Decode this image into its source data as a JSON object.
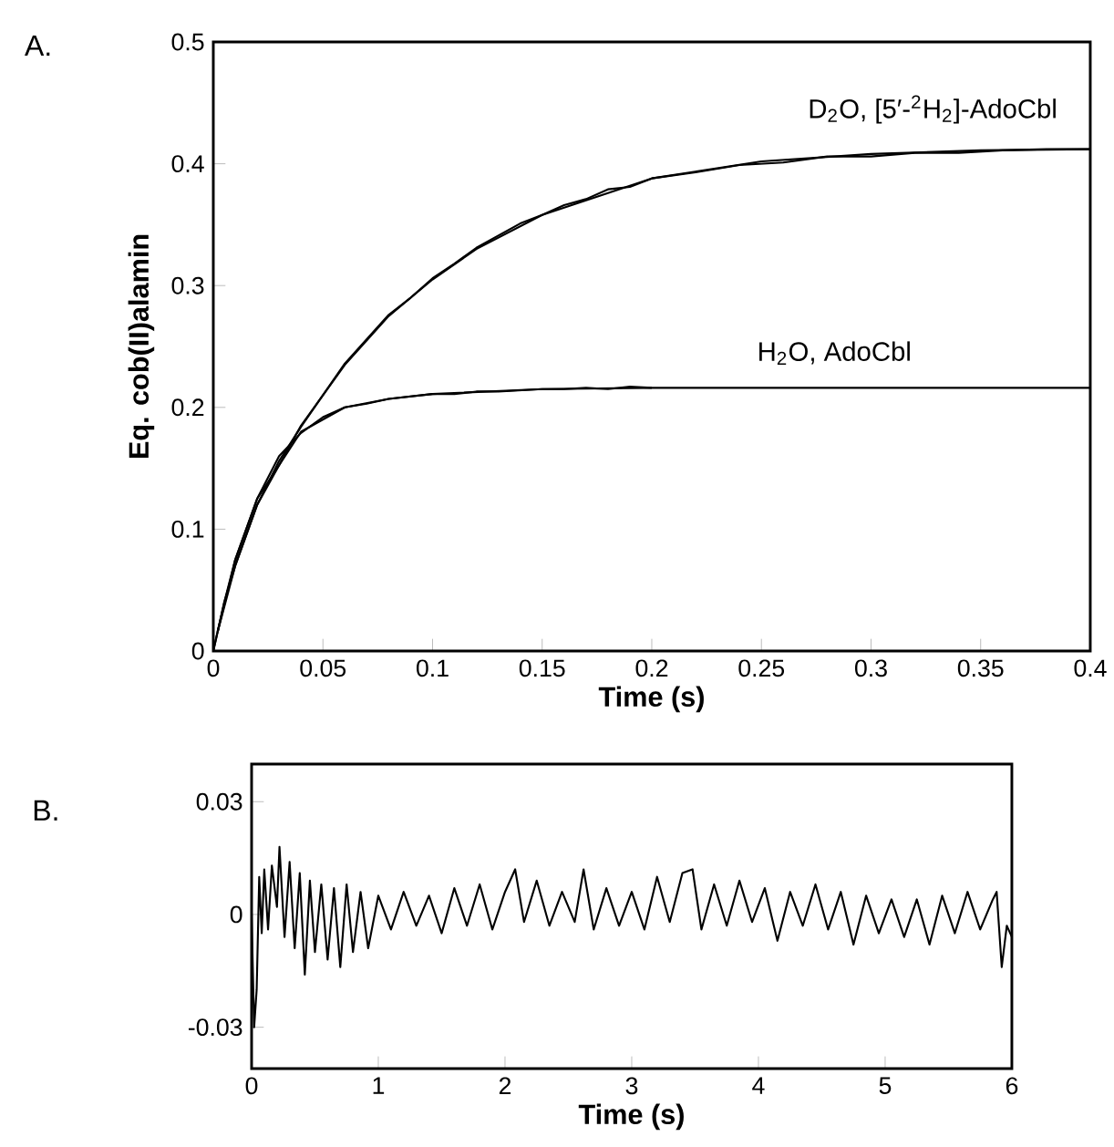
{
  "chart_data": [
    {
      "type": "line",
      "title": "A.",
      "xlabel": "Time  (s)",
      "ylabel": "Eq. cob(II)alamin",
      "xlim": [
        0,
        0.4
      ],
      "ylim": [
        0,
        0.5
      ],
      "xticks": [
        0,
        0.05,
        0.1,
        0.15,
        0.2,
        0.25,
        0.3,
        0.35,
        0.4
      ],
      "yticks": [
        0,
        0.1,
        0.2,
        0.3,
        0.4,
        0.5
      ],
      "series": [
        {
          "name": "D$_{2}$O, [5′-$^{2}$H$_{2}$]-AdoCbl",
          "color": "#000000",
          "x": [
            0,
            0.005,
            0.01,
            0.02,
            0.03,
            0.04,
            0.05,
            0.06,
            0.07,
            0.08,
            0.09,
            0.1,
            0.11,
            0.12,
            0.13,
            0.14,
            0.15,
            0.16,
            0.17,
            0.18,
            0.19,
            0.2,
            0.22,
            0.24,
            0.26,
            0.28,
            0.3,
            0.32,
            0.34,
            0.36,
            0.38,
            0.4
          ],
          "values": [
            0,
            0.04,
            0.07,
            0.12,
            0.156,
            0.184,
            0.21,
            0.236,
            0.256,
            0.276,
            0.29,
            0.306,
            0.318,
            0.331,
            0.341,
            0.351,
            0.358,
            0.366,
            0.371,
            0.379,
            0.381,
            0.388,
            0.393,
            0.399,
            0.401,
            0.406,
            0.406,
            0.409,
            0.409,
            0.411,
            0.412,
            0.412
          ]
        },
        {
          "color": "#000000",
          "x": [
            0.002,
            0.01,
            0.02,
            0.04,
            0.06,
            0.08,
            0.1,
            0.12,
            0.15,
            0.2,
            0.25,
            0.3,
            0.35,
            0.4
          ],
          "values": [
            0.016,
            0.07,
            0.12,
            0.185,
            0.235,
            0.275,
            0.305,
            0.33,
            0.358,
            0.388,
            0.402,
            0.408,
            0.411,
            0.412
          ]
        },
        {
          "color": "#000000",
          "x": [
            0,
            0.005,
            0.01,
            0.02,
            0.03,
            0.04,
            0.05,
            0.06,
            0.07,
            0.08,
            0.09,
            0.1,
            0.11,
            0.12,
            0.13,
            0.14,
            0.15,
            0.16,
            0.17,
            0.18,
            0.19,
            0.2
          ],
          "values": [
            0,
            0.04,
            0.075,
            0.125,
            0.16,
            0.179,
            0.192,
            0.2,
            0.203,
            0.207,
            0.209,
            0.211,
            0.211,
            0.213,
            0.213,
            0.214,
            0.215,
            0.215,
            0.216,
            0.215,
            0.217,
            0.216
          ]
        },
        {
          "name": "H$_{2}$O, AdoCbl",
          "color": "#000000",
          "x": [
            0.002,
            0.01,
            0.02,
            0.04,
            0.06,
            0.08,
            0.1,
            0.15,
            0.2,
            0.3,
            0.4
          ],
          "values": [
            0.016,
            0.075,
            0.125,
            0.18,
            0.2,
            0.207,
            0.211,
            0.215,
            0.216,
            0.216,
            0.216
          ]
        }
      ]
    },
    {
      "type": "line",
      "title": "B.",
      "xlabel": "Time  (s)",
      "xlim": [
        0,
        6
      ],
      "ylim": [
        -0.041,
        0.04
      ],
      "xticks": [
        0,
        1,
        2,
        3,
        4,
        5,
        6
      ],
      "yticks": [
        -0.03,
        0,
        0.03
      ],
      "series": [
        {
          "color": "#000000",
          "x": [
            0,
            0.02,
            0.04,
            0.06,
            0.08,
            0.1,
            0.13,
            0.16,
            0.2,
            0.22,
            0.26,
            0.3,
            0.34,
            0.38,
            0.42,
            0.46,
            0.5,
            0.55,
            0.6,
            0.65,
            0.7,
            0.75,
            0.8,
            0.86,
            0.92,
            1.0,
            1.1,
            1.2,
            1.3,
            1.4,
            1.5,
            1.6,
            1.7,
            1.8,
            1.9,
            2.0,
            2.08,
            2.15,
            2.25,
            2.35,
            2.45,
            2.55,
            2.62,
            2.7,
            2.8,
            2.9,
            3.0,
            3.1,
            3.2,
            3.3,
            3.4,
            3.48,
            3.55,
            3.65,
            3.75,
            3.85,
            3.95,
            4.05,
            4.15,
            4.25,
            4.35,
            4.45,
            4.55,
            4.65,
            4.75,
            4.85,
            4.95,
            5.05,
            5.15,
            5.25,
            5.35,
            5.45,
            5.55,
            5.65,
            5.75,
            5.85,
            5.88,
            5.92,
            5.96,
            6.0
          ],
          "values": [
            0,
            -0.03,
            -0.02,
            0.01,
            -0.005,
            0.012,
            -0.004,
            0.013,
            0.002,
            0.018,
            -0.006,
            0.014,
            -0.009,
            0.011,
            -0.016,
            0.009,
            -0.01,
            0.008,
            -0.012,
            0.007,
            -0.014,
            0.008,
            -0.01,
            0.006,
            -0.009,
            0.005,
            -0.004,
            0.006,
            -0.003,
            0.005,
            -0.005,
            0.007,
            -0.003,
            0.008,
            -0.004,
            0.006,
            0.012,
            -0.002,
            0.009,
            -0.003,
            0.006,
            -0.002,
            0.012,
            -0.004,
            0.007,
            -0.003,
            0.006,
            -0.004,
            0.01,
            -0.002,
            0.011,
            0.012,
            -0.004,
            0.008,
            -0.003,
            0.009,
            -0.002,
            0.007,
            -0.007,
            0.006,
            -0.003,
            0.008,
            -0.004,
            0.006,
            -0.008,
            0.005,
            -0.005,
            0.004,
            -0.006,
            0.004,
            -0.008,
            0.005,
            -0.005,
            0.006,
            -0.004,
            0.004,
            0.006,
            -0.014,
            -0.003,
            -0.006
          ]
        }
      ]
    }
  ]
}
